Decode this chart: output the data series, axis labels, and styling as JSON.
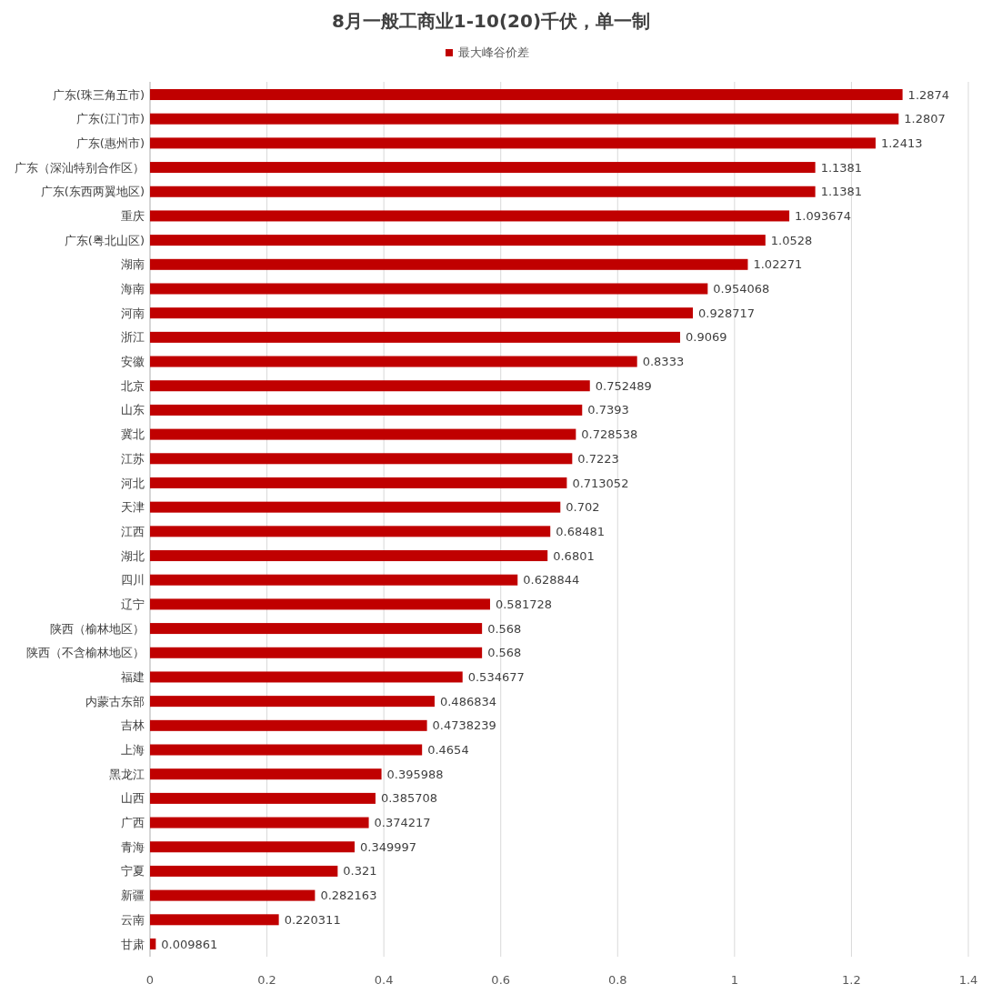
{
  "chart_data": {
    "type": "bar",
    "orientation": "horizontal",
    "title": "8月一般工商业1-10(20)千伏，单一制",
    "categories": [
      "广东(珠三角五市)",
      "广东(江门市)",
      "广东(惠州市)",
      "广东（深汕特别合作区）",
      "广东(东西两翼地区)",
      "重庆",
      "广东(粤北山区)",
      "湖南",
      "海南",
      "河南",
      "浙江",
      "安徽",
      "北京",
      "山东",
      "冀北",
      "江苏",
      "河北",
      "天津",
      "江西",
      "湖北",
      "四川",
      "辽宁",
      "陕西（榆林地区）",
      "陕西（不含榆林地区）",
      "福建",
      "内蒙古东部",
      "吉林",
      "上海",
      "黑龙江",
      "山西",
      "广西",
      "青海",
      "宁夏",
      "新疆",
      "云南",
      "甘肃"
    ],
    "series": [
      {
        "name": "最大峰谷价差",
        "color": "#c00000",
        "values": [
          1.2874,
          1.2807,
          1.2413,
          1.1381,
          1.1381,
          1.093674,
          1.0528,
          1.02271,
          0.954068,
          0.928717,
          0.9069,
          0.8333,
          0.752489,
          0.7393,
          0.728538,
          0.7223,
          0.713052,
          0.702,
          0.68481,
          0.6801,
          0.628844,
          0.581728,
          0.568,
          0.568,
          0.534677,
          0.486834,
          0.4738239,
          0.4654,
          0.395988,
          0.385708,
          0.374217,
          0.349997,
          0.321,
          0.282163,
          0.220311,
          0.009861
        ]
      }
    ],
    "xlim": [
      0,
      1.4
    ],
    "xticks": [
      0,
      0.2,
      0.4,
      0.6,
      0.8,
      1,
      1.2,
      1.4
    ],
    "grid": "x",
    "legend": "top",
    "data_labels": true
  }
}
